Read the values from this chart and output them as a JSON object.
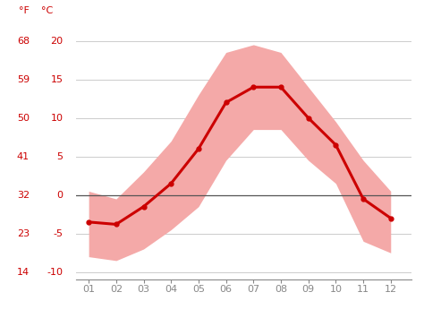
{
  "months": [
    1,
    2,
    3,
    4,
    5,
    6,
    7,
    8,
    9,
    10,
    11,
    12
  ],
  "month_labels": [
    "01",
    "02",
    "03",
    "04",
    "05",
    "06",
    "07",
    "08",
    "09",
    "10",
    "11",
    "12"
  ],
  "mean_temp_c": [
    -3.5,
    -3.8,
    -1.5,
    1.5,
    6.0,
    12.0,
    14.0,
    14.0,
    10.0,
    6.5,
    -0.5,
    -3.0
  ],
  "max_temp_c": [
    0.5,
    -0.5,
    3.0,
    7.0,
    13.0,
    18.5,
    19.5,
    18.5,
    14.0,
    9.5,
    4.5,
    0.5
  ],
  "min_temp_c": [
    -8.0,
    -8.5,
    -7.0,
    -4.5,
    -1.5,
    4.5,
    8.5,
    8.5,
    4.5,
    1.5,
    -6.0,
    -7.5
  ],
  "line_color": "#cc0000",
  "band_color": "#f4a9a8",
  "zero_line_color": "#555555",
  "y_ticks_c": [
    -10,
    -5,
    0,
    5,
    10,
    15,
    20
  ],
  "y_ticks_f": [
    14,
    23,
    32,
    41,
    50,
    59,
    68
  ],
  "ylim_c": [
    -11,
    22
  ],
  "xlim": [
    0.55,
    12.75
  ],
  "label_f": "°F",
  "label_c": "°C",
  "bg_color": "#ffffff",
  "grid_color": "#cccccc",
  "label_color": "#cc0000",
  "tick_color": "#888888",
  "font_size_tick": 8,
  "font_size_label": 8,
  "line_width": 2.2,
  "marker_size": 3.5
}
